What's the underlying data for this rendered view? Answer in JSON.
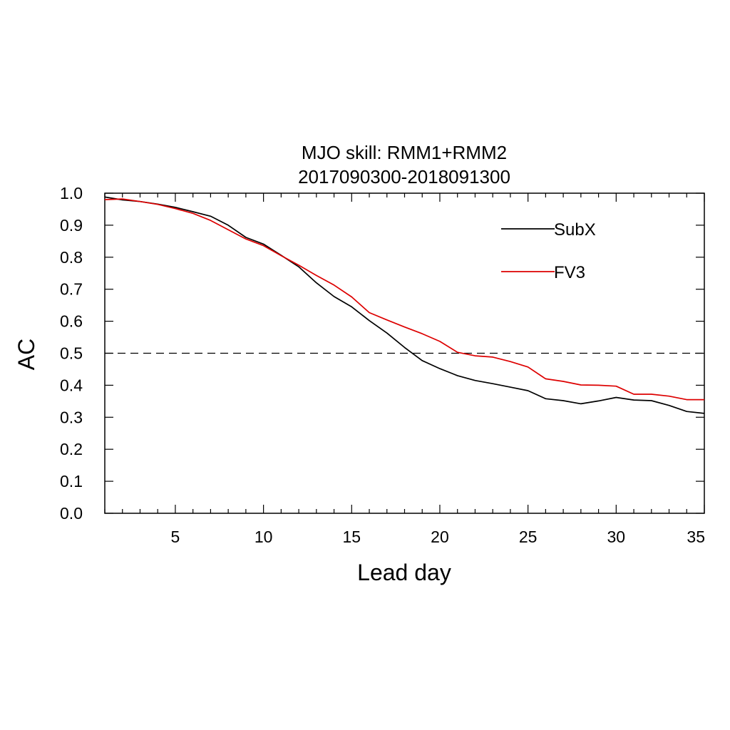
{
  "chart_data": {
    "type": "line",
    "title": "MJO skill: RMM1+RMM2",
    "subtitle": "2017090300-2018091300",
    "xlabel": "Lead day",
    "ylabel": "AC",
    "xlim": [
      1,
      35
    ],
    "ylim": [
      0,
      1
    ],
    "x_ticks": [
      5,
      10,
      15,
      20,
      25,
      30,
      35
    ],
    "x_tick_labels": [
      "5",
      "10",
      "15",
      "20",
      "25",
      "30",
      "35"
    ],
    "y_ticks": [
      0,
      0.1,
      0.2,
      0.3,
      0.4,
      0.5,
      0.6,
      0.7,
      0.8,
      0.9,
      1.0
    ],
    "y_tick_labels": [
      "0.0",
      "0.1",
      "0.2",
      "0.3",
      "0.4",
      "0.5",
      "0.6",
      "0.7",
      "0.8",
      "0.9",
      "1.0"
    ],
    "grid": false,
    "legend_position": "top-right",
    "reference_line": {
      "y": 0.5,
      "style": "dashed",
      "color": "#000000"
    },
    "x": [
      1,
      2,
      3,
      4,
      5,
      6,
      7,
      8,
      9,
      10,
      11,
      12,
      13,
      14,
      15,
      16,
      17,
      18,
      19,
      20,
      21,
      22,
      23,
      24,
      25,
      26,
      27,
      28,
      29,
      30,
      31,
      32,
      33,
      34,
      35
    ],
    "series": [
      {
        "name": "SubX",
        "color": "#000000",
        "values": [
          0.988,
          0.979,
          0.974,
          0.966,
          0.956,
          0.942,
          0.928,
          0.9,
          0.862,
          0.841,
          0.806,
          0.77,
          0.72,
          0.677,
          0.645,
          0.602,
          0.563,
          0.518,
          0.477,
          0.452,
          0.43,
          0.415,
          0.405,
          0.394,
          0.383,
          0.358,
          0.352,
          0.342,
          0.351,
          0.362,
          0.354,
          0.352,
          0.337,
          0.318,
          0.312
        ]
      },
      {
        "name": "FV3",
        "color": "#dd0000",
        "values": [
          0.98,
          0.982,
          0.974,
          0.965,
          0.952,
          0.937,
          0.915,
          0.886,
          0.857,
          0.836,
          0.805,
          0.775,
          0.743,
          0.713,
          0.676,
          0.627,
          0.604,
          0.582,
          0.561,
          0.537,
          0.503,
          0.492,
          0.488,
          0.474,
          0.457,
          0.42,
          0.412,
          0.401,
          0.4,
          0.397,
          0.372,
          0.372,
          0.366,
          0.355,
          0.355
        ]
      }
    ]
  }
}
